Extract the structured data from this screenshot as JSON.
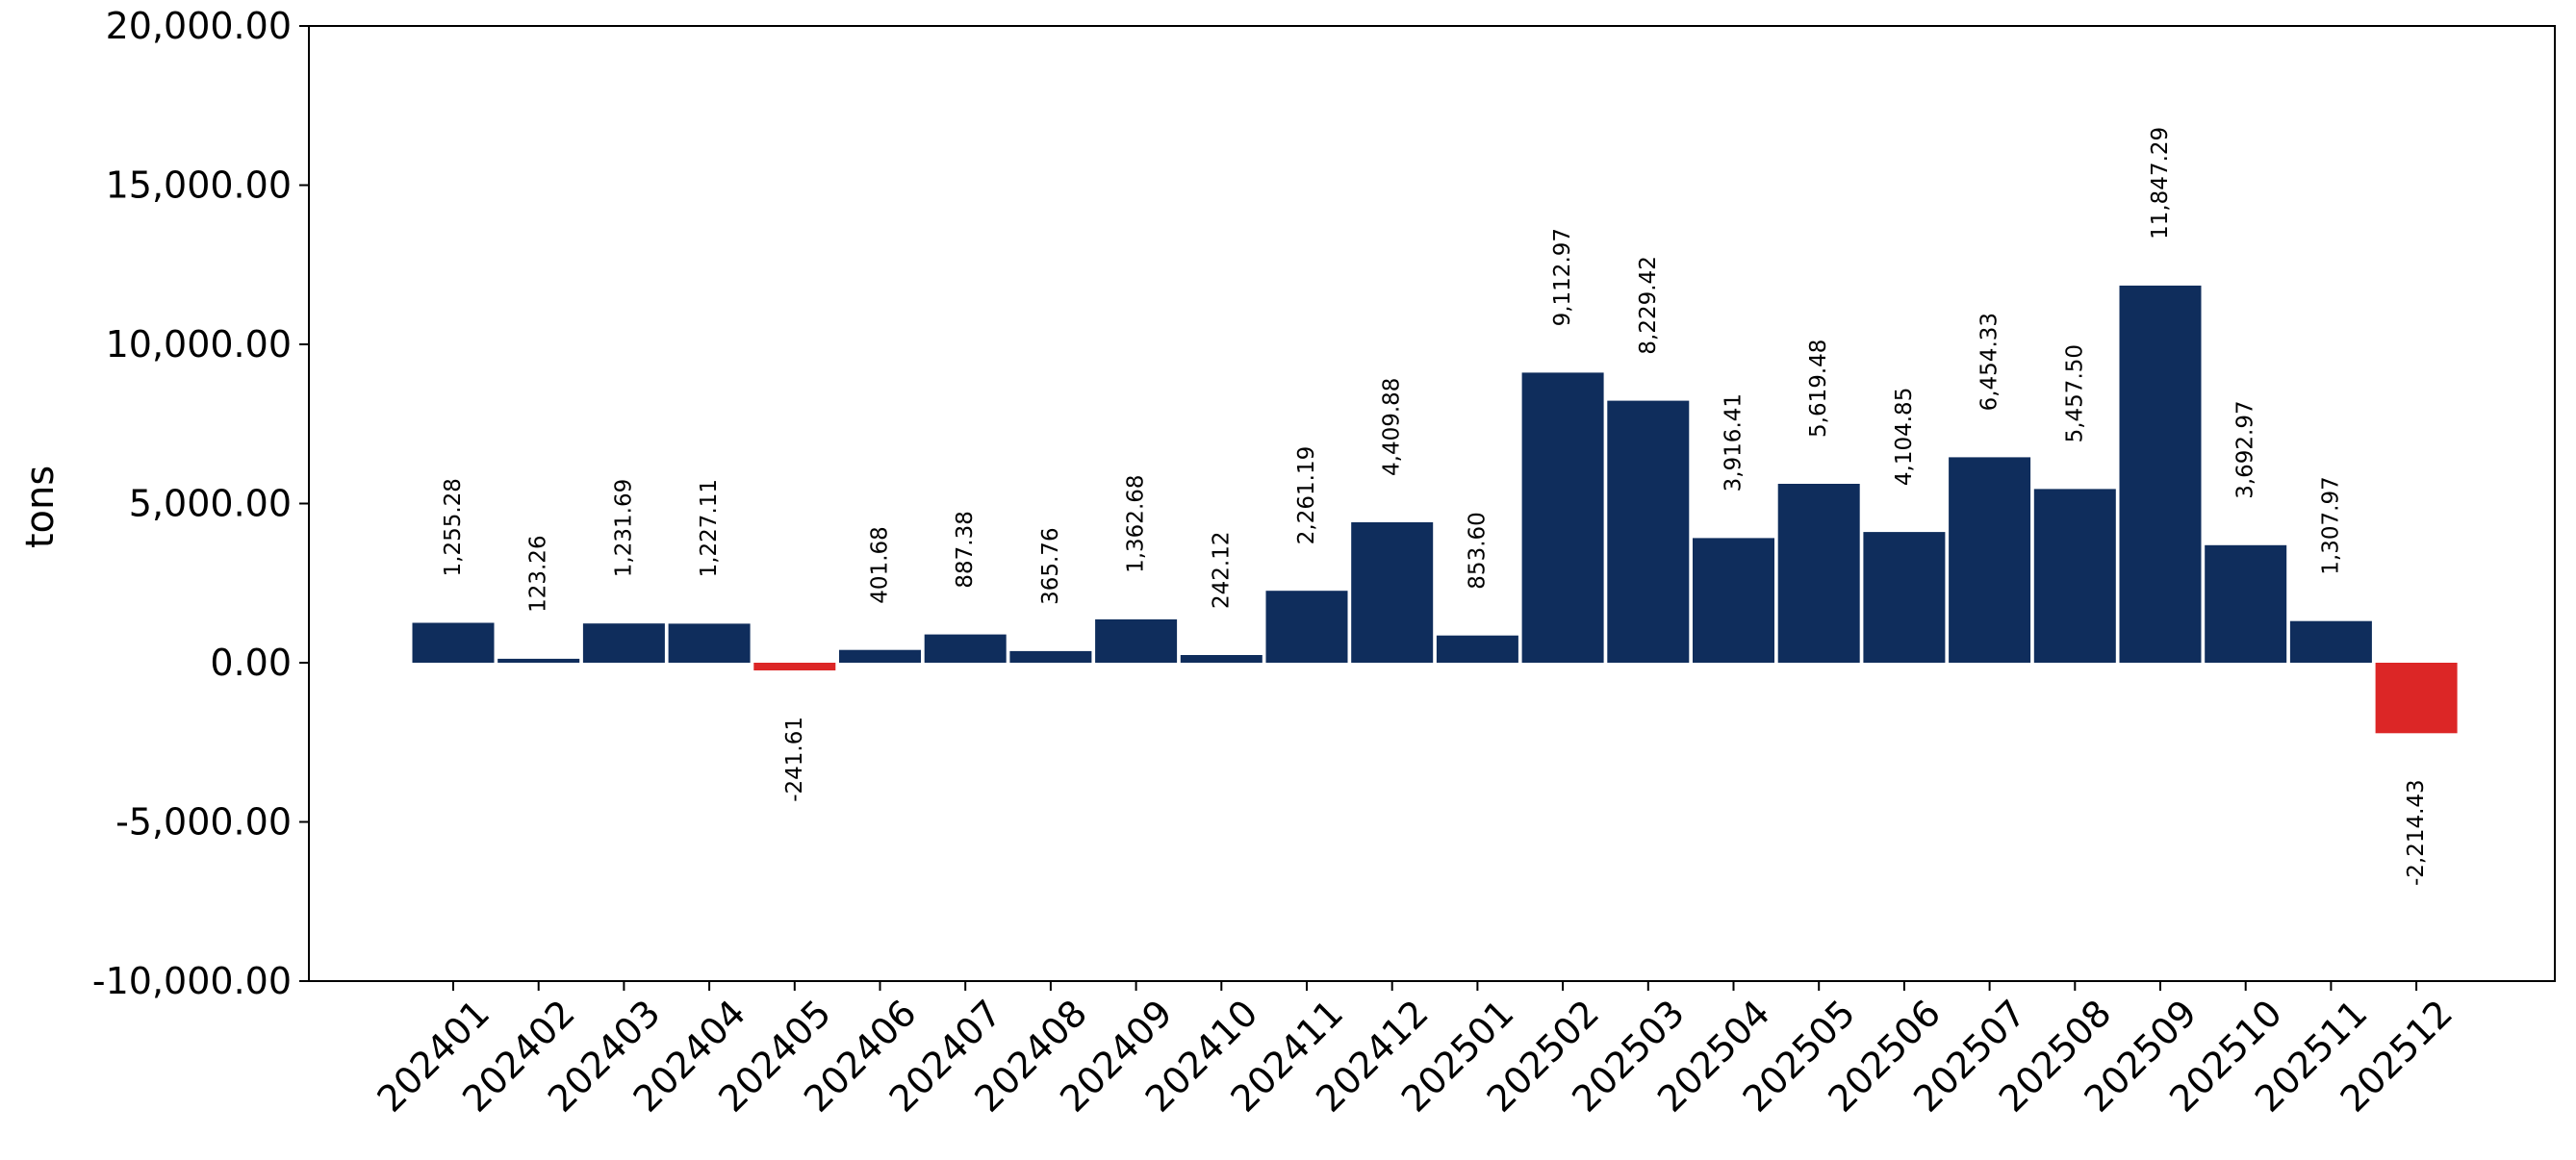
{
  "chart_data": {
    "type": "bar",
    "title": "",
    "xlabel": "",
    "ylabel": "tons",
    "ylim": [
      -10000,
      20000
    ],
    "yticks": [
      -10000,
      -5000,
      0,
      5000,
      10000,
      15000,
      20000
    ],
    "ytick_labels": [
      "-10,000.00",
      "-5,000.00",
      "0.00",
      "5,000.00",
      "10,000.00",
      "15,000.00",
      "20,000.00"
    ],
    "grid": false,
    "legend": "none",
    "colors": {
      "positive": "#0f2d5c",
      "negative": "#dc2626"
    },
    "categories": [
      "202401",
      "202402",
      "202403",
      "202404",
      "202405",
      "202406",
      "202407",
      "202408",
      "202409",
      "202410",
      "202411",
      "202412",
      "202501",
      "202502",
      "202503",
      "202504",
      "202505",
      "202506",
      "202507",
      "202508",
      "202509",
      "202510",
      "202511",
      "202512"
    ],
    "values": [
      1255.28,
      123.26,
      1231.69,
      1227.11,
      -241.61,
      401.68,
      887.38,
      365.76,
      1362.68,
      242.12,
      2261.19,
      4409.88,
      853.6,
      9112.97,
      8229.42,
      3916.41,
      5619.48,
      4104.85,
      6454.33,
      5457.5,
      11847.29,
      3692.97,
      1307.97,
      -2214.43
    ],
    "value_labels": [
      "1,255.28",
      "123.26",
      "1,231.69",
      "1,227.11",
      "-241.61",
      "401.68",
      "887.38",
      "365.76",
      "1,362.68",
      "242.12",
      "2,261.19",
      "4,409.88",
      "853.60",
      "9,112.97",
      "8,229.42",
      "3,916.41",
      "5,619.48",
      "4,104.85",
      "6,454.33",
      "5,457.50",
      "11,847.29",
      "3,692.97",
      "1,307.97",
      "-2,214.43"
    ]
  }
}
